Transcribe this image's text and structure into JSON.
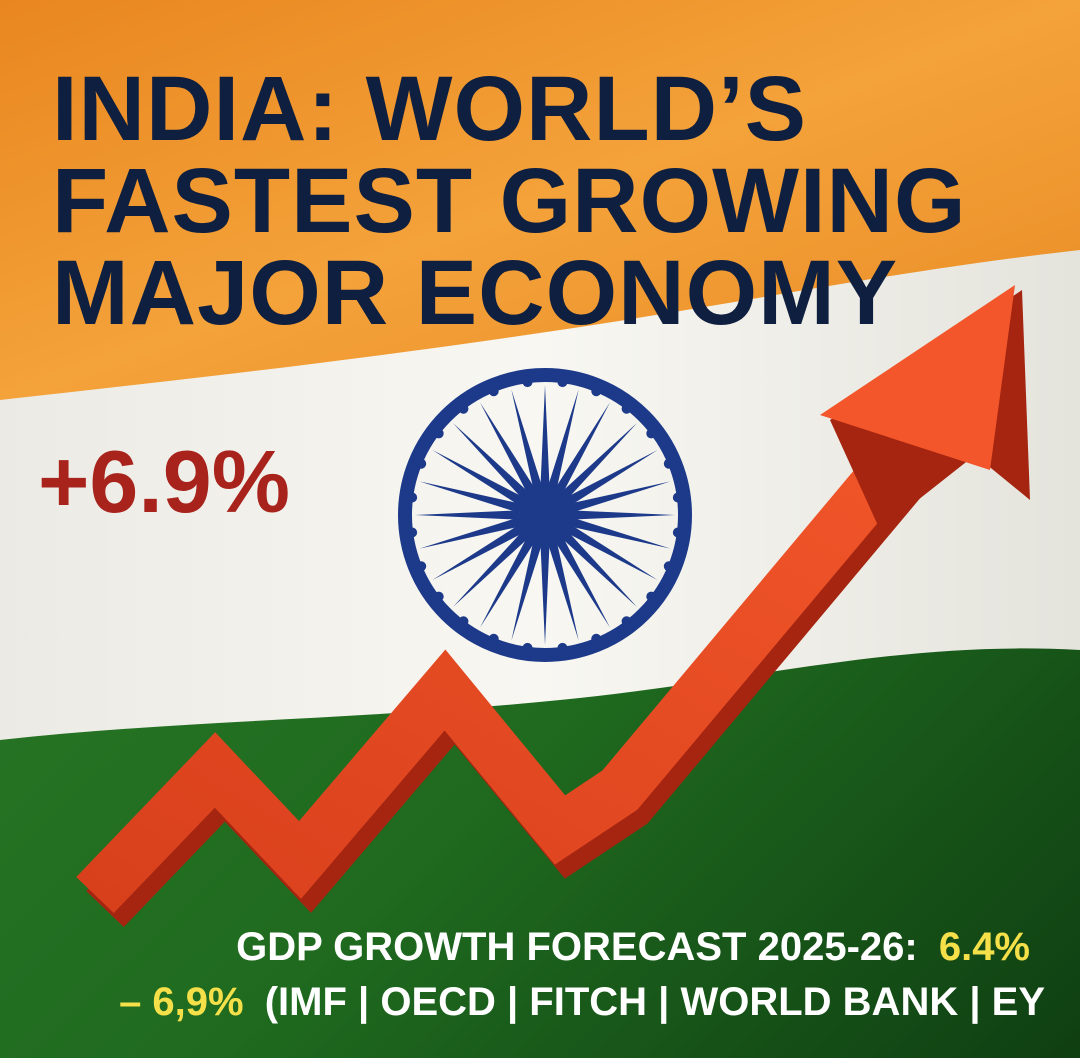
{
  "title": {
    "lines": [
      "INDIA: WORLD’S",
      "FASTEST GROWING",
      "MAJOR ECONOMY"
    ]
  },
  "headline_figure": "+6.9%",
  "footer": {
    "line1": [
      "GDP GROWTH FORECAST 2025-26:",
      "6.4%"
    ],
    "line2": [
      "– 6,9%",
      "(IMF | OECD | FITCH | WORLD BANK | EY"
    ]
  }
}
